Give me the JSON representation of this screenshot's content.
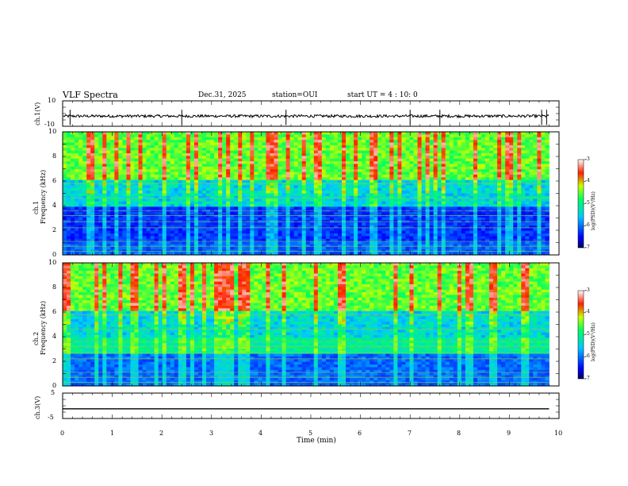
{
  "header": {
    "title": "VLF Spectra",
    "date": "Dec.31, 2025",
    "station": "station=OUI",
    "start": "start  UT =   4 : 10: 0"
  },
  "chart_data": [
    {
      "type": "line",
      "panel": "ch1-waveform",
      "ylabel": "ch.1(V)",
      "ylim": [
        -10,
        10
      ],
      "yticks": [
        "10",
        "-10"
      ],
      "baseline": -2,
      "spikes_min": [
        0.15,
        2.4,
        4.5,
        7.0,
        7.6,
        9.65,
        9.75
      ],
      "end_min": 9.8
    },
    {
      "type": "heatmap",
      "panel": "ch1-spectrogram",
      "ylabel": "ch.1\nFrequency (kHz)",
      "ylim": [
        0,
        10
      ],
      "yticks": [
        "0",
        "2",
        "4",
        "6",
        "8",
        "10"
      ],
      "colorbar": {
        "label": "log(PSD)(V²/Hz)",
        "range": [
          -7,
          -3
        ],
        "ticks": [
          "-3",
          "-4",
          "-5",
          "-6",
          "-7"
        ]
      }
    },
    {
      "type": "heatmap",
      "panel": "ch2-spectrogram",
      "ylabel": "ch.2\nFrequency (kHz)",
      "ylim": [
        0,
        10
      ],
      "yticks": [
        "0",
        "2",
        "4",
        "6",
        "8",
        "10"
      ],
      "colorbar": {
        "label": "log(PSD)(V²/Hz)",
        "range": [
          -7,
          -3
        ],
        "ticks": [
          "-3",
          "-4",
          "-5",
          "-6",
          "-7"
        ]
      }
    },
    {
      "type": "line",
      "panel": "ch3-waveform",
      "ylabel": "ch.3(V)",
      "ylim": [
        -5,
        5
      ],
      "yticks": [
        "5",
        "-5"
      ],
      "baseline": -1.2,
      "end_min": 9.8
    }
  ],
  "xaxis": {
    "label": "Time (min)",
    "range": [
      0,
      10
    ],
    "ticks": [
      "0",
      "1",
      "2",
      "3",
      "4",
      "5",
      "6",
      "7",
      "8",
      "9",
      "10"
    ]
  },
  "colors": {
    "axis": "#000000",
    "trace": "#000000"
  }
}
